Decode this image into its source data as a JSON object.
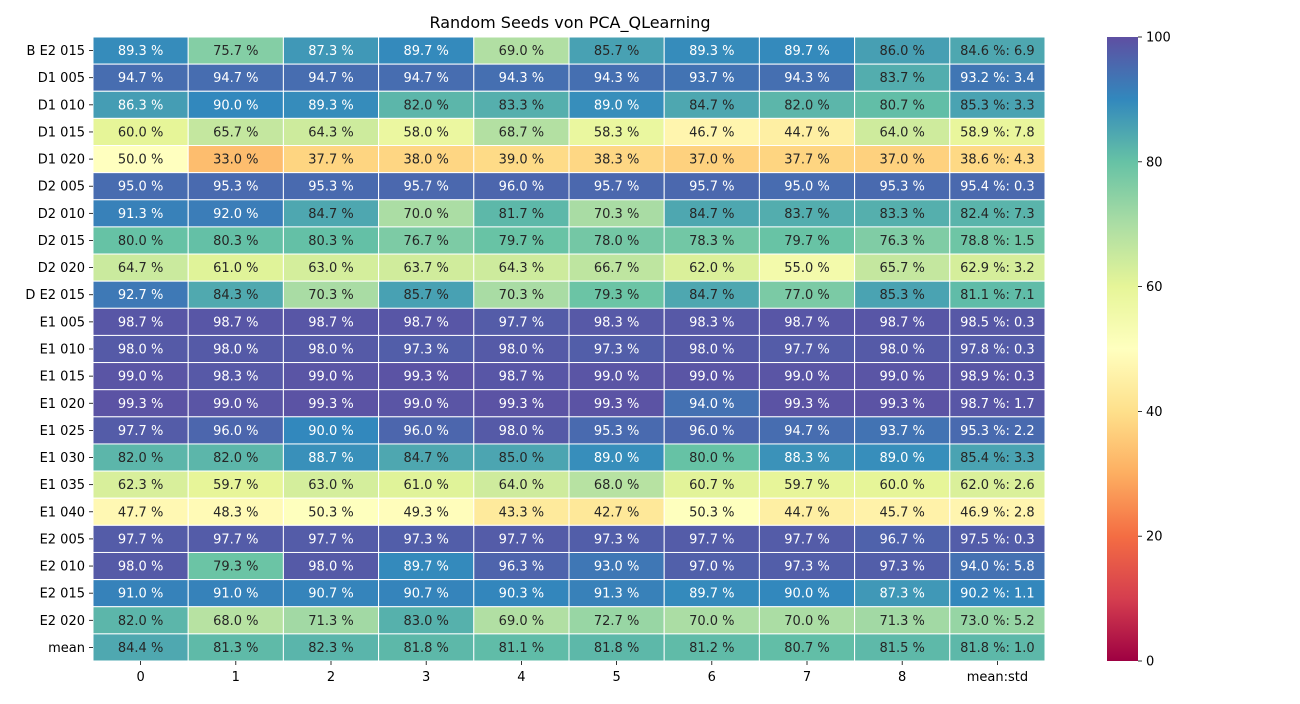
{
  "chart_data": {
    "type": "heatmap",
    "title": "Random Seeds von PCA_QLearning",
    "xlabel": "",
    "ylabel": "",
    "columns": [
      "0",
      "1",
      "2",
      "3",
      "4",
      "5",
      "6",
      "7",
      "8",
      "mean:std"
    ],
    "rows": [
      "B E2 015",
      "D1 005",
      "D1 010",
      "D1 015",
      "D1 020",
      "D2 005",
      "D2 010",
      "D2 015",
      "D2 020",
      "D E2 015",
      "E1 005",
      "E1 010",
      "E1 015",
      "E1 020",
      "E1 025",
      "E1 030",
      "E1 035",
      "E1 040",
      "E2 005",
      "E2 010",
      "E2 015",
      "E2 020",
      "mean"
    ],
    "values": [
      [
        89.3,
        75.7,
        87.3,
        89.7,
        69.0,
        85.7,
        89.3,
        89.7,
        86.0,
        84.6
      ],
      [
        94.7,
        94.7,
        94.7,
        94.7,
        94.3,
        94.3,
        93.7,
        94.3,
        83.7,
        93.2
      ],
      [
        86.3,
        90.0,
        89.3,
        82.0,
        83.3,
        89.0,
        84.7,
        82.0,
        80.7,
        85.3
      ],
      [
        60.0,
        65.7,
        64.3,
        58.0,
        68.7,
        58.3,
        46.7,
        44.7,
        64.0,
        58.9
      ],
      [
        50.0,
        33.0,
        37.7,
        38.0,
        39.0,
        38.3,
        37.0,
        37.7,
        37.0,
        38.6
      ],
      [
        95.0,
        95.3,
        95.3,
        95.7,
        96.0,
        95.7,
        95.7,
        95.0,
        95.3,
        95.4
      ],
      [
        91.3,
        92.0,
        84.7,
        70.0,
        81.7,
        70.3,
        84.7,
        83.7,
        83.3,
        82.4
      ],
      [
        80.0,
        80.3,
        80.3,
        76.7,
        79.7,
        78.0,
        78.3,
        79.7,
        76.3,
        78.8
      ],
      [
        64.7,
        61.0,
        63.0,
        63.7,
        64.3,
        66.7,
        62.0,
        55.0,
        65.7,
        62.9
      ],
      [
        92.7,
        84.3,
        70.3,
        85.7,
        70.3,
        79.3,
        84.7,
        77.0,
        85.3,
        81.1
      ],
      [
        98.7,
        98.7,
        98.7,
        98.7,
        97.7,
        98.3,
        98.3,
        98.7,
        98.7,
        98.5
      ],
      [
        98.0,
        98.0,
        98.0,
        97.3,
        98.0,
        97.3,
        98.0,
        97.7,
        98.0,
        97.8
      ],
      [
        99.0,
        98.3,
        99.0,
        99.3,
        98.7,
        99.0,
        99.0,
        99.0,
        99.0,
        98.9
      ],
      [
        99.3,
        99.0,
        99.3,
        99.0,
        99.3,
        99.3,
        94.0,
        99.3,
        99.3,
        98.7
      ],
      [
        97.7,
        96.0,
        90.0,
        96.0,
        98.0,
        95.3,
        96.0,
        94.7,
        93.7,
        95.3
      ],
      [
        82.0,
        82.0,
        88.7,
        84.7,
        85.0,
        89.0,
        80.0,
        88.3,
        89.0,
        85.4
      ],
      [
        62.3,
        59.7,
        63.0,
        61.0,
        64.0,
        68.0,
        60.7,
        59.7,
        60.0,
        62.0
      ],
      [
        47.7,
        48.3,
        50.3,
        49.3,
        43.3,
        42.7,
        50.3,
        44.7,
        45.7,
        46.9
      ],
      [
        97.7,
        97.7,
        97.7,
        97.3,
        97.7,
        97.3,
        97.7,
        97.7,
        96.7,
        97.5
      ],
      [
        98.0,
        79.3,
        98.0,
        89.7,
        96.3,
        93.0,
        97.0,
        97.3,
        97.3,
        94.0
      ],
      [
        91.0,
        91.0,
        90.7,
        90.7,
        90.3,
        91.3,
        89.7,
        90.0,
        87.3,
        90.2
      ],
      [
        82.0,
        68.0,
        71.3,
        83.0,
        69.0,
        72.7,
        70.0,
        70.0,
        71.3,
        73.0
      ],
      [
        84.4,
        81.3,
        82.3,
        81.8,
        81.1,
        81.8,
        81.2,
        80.7,
        81.5,
        81.8
      ]
    ],
    "labels": [
      [
        "89.3 %",
        "75.7 %",
        "87.3 %",
        "89.7 %",
        "69.0 %",
        "85.7 %",
        "89.3 %",
        "89.7 %",
        "86.0 %",
        "84.6 %: 6.9"
      ],
      [
        "94.7 %",
        "94.7 %",
        "94.7 %",
        "94.7 %",
        "94.3 %",
        "94.3 %",
        "93.7 %",
        "94.3 %",
        "83.7 %",
        "93.2 %: 3.4"
      ],
      [
        "86.3 %",
        "90.0 %",
        "89.3 %",
        "82.0 %",
        "83.3 %",
        "89.0 %",
        "84.7 %",
        "82.0 %",
        "80.7 %",
        "85.3 %: 3.3"
      ],
      [
        "60.0 %",
        "65.7 %",
        "64.3 %",
        "58.0 %",
        "68.7 %",
        "58.3 %",
        "46.7 %",
        "44.7 %",
        "64.0 %",
        "58.9 %: 7.8"
      ],
      [
        "50.0 %",
        "33.0 %",
        "37.7 %",
        "38.0 %",
        "39.0 %",
        "38.3 %",
        "37.0 %",
        "37.7 %",
        "37.0 %",
        "38.6 %: 4.3"
      ],
      [
        "95.0 %",
        "95.3 %",
        "95.3 %",
        "95.7 %",
        "96.0 %",
        "95.7 %",
        "95.7 %",
        "95.0 %",
        "95.3 %",
        "95.4 %: 0.3"
      ],
      [
        "91.3 %",
        "92.0 %",
        "84.7 %",
        "70.0 %",
        "81.7 %",
        "70.3 %",
        "84.7 %",
        "83.7 %",
        "83.3 %",
        "82.4 %: 7.3"
      ],
      [
        "80.0 %",
        "80.3 %",
        "80.3 %",
        "76.7 %",
        "79.7 %",
        "78.0 %",
        "78.3 %",
        "79.7 %",
        "76.3 %",
        "78.8 %: 1.5"
      ],
      [
        "64.7 %",
        "61.0 %",
        "63.0 %",
        "63.7 %",
        "64.3 %",
        "66.7 %",
        "62.0 %",
        "55.0 %",
        "65.7 %",
        "62.9 %: 3.2"
      ],
      [
        "92.7 %",
        "84.3 %",
        "70.3 %",
        "85.7 %",
        "70.3 %",
        "79.3 %",
        "84.7 %",
        "77.0 %",
        "85.3 %",
        "81.1 %: 7.1"
      ],
      [
        "98.7 %",
        "98.7 %",
        "98.7 %",
        "98.7 %",
        "97.7 %",
        "98.3 %",
        "98.3 %",
        "98.7 %",
        "98.7 %",
        "98.5 %: 0.3"
      ],
      [
        "98.0 %",
        "98.0 %",
        "98.0 %",
        "97.3 %",
        "98.0 %",
        "97.3 %",
        "98.0 %",
        "97.7 %",
        "98.0 %",
        "97.8 %: 0.3"
      ],
      [
        "99.0 %",
        "98.3 %",
        "99.0 %",
        "99.3 %",
        "98.7 %",
        "99.0 %",
        "99.0 %",
        "99.0 %",
        "99.0 %",
        "98.9 %: 0.3"
      ],
      [
        "99.3 %",
        "99.0 %",
        "99.3 %",
        "99.0 %",
        "99.3 %",
        "99.3 %",
        "94.0 %",
        "99.3 %",
        "99.3 %",
        "98.7 %: 1.7"
      ],
      [
        "97.7 %",
        "96.0 %",
        "90.0 %",
        "96.0 %",
        "98.0 %",
        "95.3 %",
        "96.0 %",
        "94.7 %",
        "93.7 %",
        "95.3 %: 2.2"
      ],
      [
        "82.0 %",
        "82.0 %",
        "88.7 %",
        "84.7 %",
        "85.0 %",
        "89.0 %",
        "80.0 %",
        "88.3 %",
        "89.0 %",
        "85.4 %: 3.3"
      ],
      [
        "62.3 %",
        "59.7 %",
        "63.0 %",
        "61.0 %",
        "64.0 %",
        "68.0 %",
        "60.7 %",
        "59.7 %",
        "60.0 %",
        "62.0 %: 2.6"
      ],
      [
        "47.7 %",
        "48.3 %",
        "50.3 %",
        "49.3 %",
        "43.3 %",
        "42.7 %",
        "50.3 %",
        "44.7 %",
        "45.7 %",
        "46.9 %: 2.8"
      ],
      [
        "97.7 %",
        "97.7 %",
        "97.7 %",
        "97.3 %",
        "97.7 %",
        "97.3 %",
        "97.7 %",
        "97.7 %",
        "96.7 %",
        "97.5 %: 0.3"
      ],
      [
        "98.0 %",
        "79.3 %",
        "98.0 %",
        "89.7 %",
        "96.3 %",
        "93.0 %",
        "97.0 %",
        "97.3 %",
        "97.3 %",
        "94.0 %: 5.8"
      ],
      [
        "91.0 %",
        "91.0 %",
        "90.7 %",
        "90.7 %",
        "90.3 %",
        "91.3 %",
        "89.7 %",
        "90.0 %",
        "87.3 %",
        "90.2 %: 1.1"
      ],
      [
        "82.0 %",
        "68.0 %",
        "71.3 %",
        "83.0 %",
        "69.0 %",
        "72.7 %",
        "70.0 %",
        "70.0 %",
        "71.3 %",
        "73.0 %: 5.2"
      ],
      [
        "84.4 %",
        "81.3 %",
        "82.3 %",
        "81.8 %",
        "81.1 %",
        "81.8 %",
        "81.2 %",
        "80.7 %",
        "81.5 %",
        "81.8 %: 1.0"
      ]
    ],
    "colorbar": {
      "range": [
        0,
        100
      ],
      "ticks": [
        "0",
        "20",
        "40",
        "60",
        "80",
        "100"
      ],
      "colormap": "Spectral"
    },
    "grid": true,
    "legend": "colorbar-right"
  }
}
